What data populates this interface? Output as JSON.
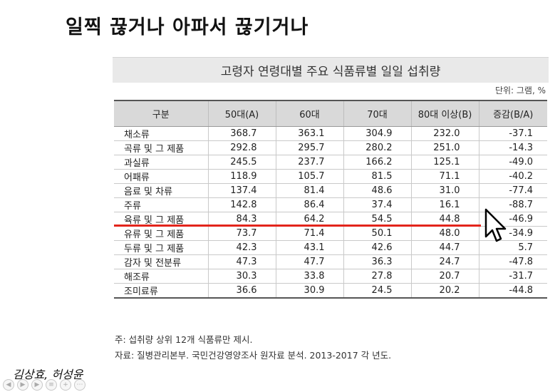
{
  "slide_title": "일찍 끊거나 아파서 끊기거나",
  "table_title": "고령자 연령대별 주요 식품류별 일일 섭취량",
  "unit_note": "단위: 그램, %",
  "headers": [
    "구분",
    "50대(A)",
    "60대",
    "70대",
    "80대 이상(B)",
    "증감(B/A)"
  ],
  "rows": [
    [
      "채소류",
      "368.7",
      "363.1",
      "304.9",
      "232.0",
      "-37.1"
    ],
    [
      "곡류 및 그 제품",
      "292.8",
      "295.7",
      "280.2",
      "251.0",
      "-14.3"
    ],
    [
      "과실류",
      "245.5",
      "237.7",
      "166.2",
      "125.1",
      "-49.0"
    ],
    [
      "어패류",
      "118.9",
      "105.7",
      "81.5",
      "71.1",
      "-40.2"
    ],
    [
      "음료 및 차류",
      "137.4",
      "81.4",
      "48.6",
      "31.0",
      "-77.4"
    ],
    [
      "주류",
      "142.8",
      "86.4",
      "37.4",
      "16.1",
      "-88.7"
    ],
    [
      "육류 및 그 제품",
      "84.3",
      "64.2",
      "54.5",
      "44.8",
      "-46.9"
    ],
    [
      "유류 및 그 제품",
      "73.7",
      "71.4",
      "50.1",
      "48.0",
      "-34.9"
    ],
    [
      "두류 및 그 제품",
      "42.3",
      "43.1",
      "42.6",
      "44.7",
      "5.7"
    ],
    [
      "감자 및 전분류",
      "47.3",
      "47.7",
      "36.3",
      "24.7",
      "-47.8"
    ],
    [
      "해조류",
      "30.3",
      "33.8",
      "27.8",
      "20.7",
      "-31.7"
    ],
    [
      "조미료류",
      "36.6",
      "30.9",
      "24.5",
      "20.2",
      "-44.8"
    ]
  ],
  "footnote": "주: 섭취량 상위 12개 식품류만 제시.",
  "source": "자료: 질병관리본부. 국민건강영양조사 원자료 분석. 2013-2017 각 년도.",
  "author": "김상효, 허성윤",
  "colors": {
    "highlight_line": "#e3241b",
    "header_bg": "#d9d9d9",
    "title_bar_bg": "#e9e9e9"
  },
  "icons": {
    "cursor": "arrow-cursor-icon"
  }
}
